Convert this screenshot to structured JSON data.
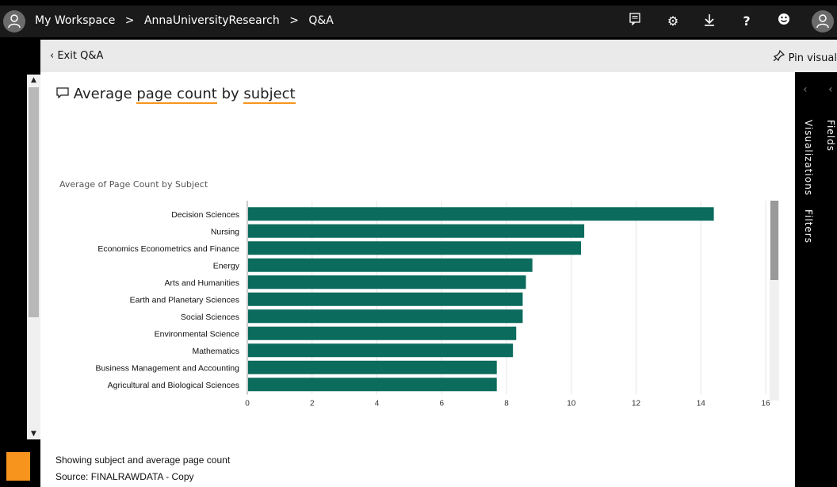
{
  "topbar": {
    "breadcrumb": [
      "My Workspace",
      ">",
      "AnnaUniversityResearch",
      ">",
      "Q&A"
    ],
    "icons": [
      "user-avatar-icon",
      "comment-icon",
      "gear-icon",
      "download-icon",
      "help-icon",
      "smiley-icon",
      "user-avatar-icon"
    ]
  },
  "qa_header": {
    "exit_label": "Exit Q&A",
    "pin_label": "Pin visual"
  },
  "question": {
    "prefix": "Average ",
    "term1": "page count",
    "middle": " by ",
    "term2": "subject"
  },
  "right_panel": {
    "fields_label": "Fields",
    "visualizations_label": "Visualizations",
    "filters_label": "Filters"
  },
  "footer": {
    "showing": "Showing subject and average page count",
    "source": "Source: FINALRAWDATA - Copy"
  },
  "colors": {
    "bar": "#0b6b5d",
    "accent": "#f7941d"
  },
  "chart_data": {
    "type": "bar",
    "orientation": "horizontal",
    "title": "Average of Page Count by Subject",
    "categories": [
      "Decision Sciences",
      "Nursing",
      "Economics Econometrics and Finance",
      "Energy",
      "Arts and Humanities",
      "Earth and Planetary Sciences",
      "Social Sciences",
      "Environmental Science",
      "Mathematics",
      "Business Management and Accounting",
      "Agricultural and Biological Sciences"
    ],
    "values": [
      14.4,
      10.4,
      10.3,
      8.8,
      8.6,
      8.5,
      8.5,
      8.3,
      8.2,
      7.7,
      7.7
    ],
    "xlim": [
      0,
      16
    ],
    "xticks": [
      0,
      2,
      4,
      6,
      8,
      10,
      12,
      14,
      16
    ],
    "grid": true
  }
}
